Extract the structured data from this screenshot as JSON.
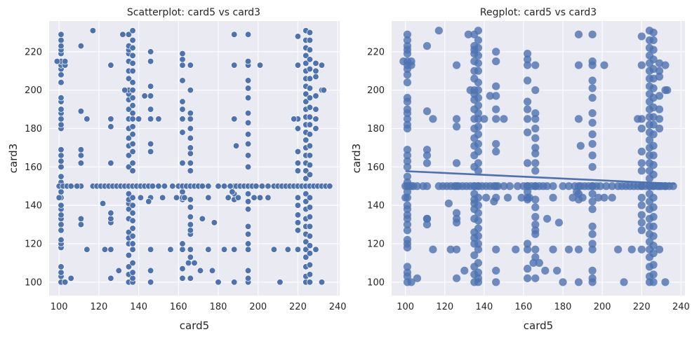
{
  "colors": {
    "plot_bg": "#eaeaf2",
    "grid": "#ffffff",
    "point": "#4c72b0",
    "edge": "#ffffff",
    "text": "#262626"
  },
  "chart_data": [
    {
      "type": "scatter",
      "title": "Scatterplot: card5 vs card3",
      "xlabel": "card5",
      "ylabel": "card3",
      "xlim": [
        95,
        241
      ],
      "ylim": [
        93,
        236
      ],
      "xticks": [
        100,
        120,
        140,
        160,
        180,
        200,
        220,
        240
      ],
      "yticks": [
        100,
        120,
        140,
        160,
        180,
        200,
        220
      ],
      "grid": true,
      "point_style": "white-edge",
      "columns": [
        {
          "x": 101,
          "y": [
            100,
            103,
            105,
            108,
            118,
            120,
            122,
            127,
            130,
            133,
            135,
            138,
            144,
            147,
            150,
            152,
            155,
            160,
            163,
            166,
            169,
            180,
            182,
            185,
            188,
            190,
            194,
            196,
            204,
            208,
            211,
            213,
            215,
            219,
            221,
            223,
            226,
            229
          ]
        },
        {
          "x": 103,
          "y": [
            100,
            150,
            213,
            215
          ]
        },
        {
          "x": 111,
          "y": [
            130,
            133,
            150,
            162,
            166,
            169,
            189,
            223
          ]
        },
        {
          "x": 126,
          "y": [
            102,
            117,
            131,
            133,
            136,
            150,
            162,
            181,
            185,
            213
          ]
        },
        {
          "x": 135,
          "y": [
            100,
            104,
            108,
            114,
            120,
            123,
            126,
            133,
            138,
            141,
            143,
            146,
            150,
            160,
            166,
            171,
            175,
            180,
            185,
            190,
            195,
            198,
            200,
            206,
            210,
            215,
            219,
            221,
            223,
            229
          ]
        },
        {
          "x": 137,
          "y": [
            100,
            102,
            105,
            110,
            117,
            120,
            124,
            128,
            132,
            136,
            140,
            144,
            150,
            158,
            162,
            168,
            172,
            177,
            181,
            185,
            188,
            192,
            196,
            200,
            204,
            210,
            214,
            218,
            222,
            226,
            231
          ]
        },
        {
          "x": 146,
          "y": [
            100,
            106,
            117,
            150,
            168,
            172,
            185,
            190,
            197,
            202,
            215,
            220
          ]
        },
        {
          "x": 162,
          "y": [
            102,
            107,
            117,
            120,
            143,
            147,
            150,
            162,
            178,
            185,
            190,
            194,
            205,
            213,
            216,
            219
          ]
        },
        {
          "x": 166,
          "y": [
            102,
            113,
            117,
            125,
            127,
            130,
            134,
            139,
            143,
            150,
            158,
            162,
            167,
            170,
            175,
            180,
            185,
            188,
            200,
            213
          ]
        },
        {
          "x": 188,
          "y": [
            100,
            117,
            143,
            146,
            150,
            185,
            213,
            229
          ]
        },
        {
          "x": 195,
          "y": [
            100,
            102,
            106,
            117,
            120,
            125,
            129,
            138,
            142,
            146,
            150,
            160,
            166,
            172,
            177,
            183,
            188,
            196,
            201,
            205,
            213,
            215,
            229
          ]
        },
        {
          "x": 220,
          "y": [
            117,
            127,
            131,
            135,
            140,
            144,
            150,
            158,
            162,
            168,
            180,
            185,
            213,
            228
          ]
        },
        {
          "x": 224,
          "y": [
            100,
            103,
            108,
            113,
            117,
            121,
            125,
            129,
            133,
            138,
            142,
            146,
            150,
            154,
            158,
            162,
            166,
            170,
            174,
            178,
            182,
            186,
            190,
            194,
            198,
            202,
            206,
            210,
            214,
            218,
            222,
            226,
            231
          ]
        },
        {
          "x": 226,
          "y": [
            100,
            104,
            109,
            115,
            119,
            124,
            129,
            134,
            139,
            144,
            150,
            156,
            161,
            166,
            171,
            177,
            182,
            186,
            191,
            196,
            201,
            206,
            211,
            216,
            221,
            226,
            230
          ]
        },
        {
          "x": 229,
          "y": [
            117,
            150,
            180,
            185,
            190,
            197,
            207,
            210,
            214
          ]
        },
        {
          "x": 232,
          "y": [
            100,
            150,
            200,
            213
          ]
        }
      ],
      "rows": [
        {
          "y": 150,
          "x": [
            100,
            102,
            104,
            106,
            109,
            117,
            119,
            121,
            123,
            125,
            127,
            129,
            131,
            133,
            135,
            137,
            139,
            141,
            143,
            145,
            147,
            150,
            153,
            157,
            160,
            162,
            164,
            166,
            168,
            170,
            172,
            175,
            180,
            183,
            186,
            189,
            191,
            193,
            195,
            197,
            199,
            202,
            205,
            208,
            210,
            212,
            214,
            216,
            218,
            220,
            222,
            224,
            226,
            228,
            230,
            232,
            234,
            236
          ]
        },
        {
          "y": 144,
          "x": [
            100,
            141,
            146,
            152,
            162,
            163,
            175,
            185,
            190,
            198,
            201
          ]
        }
      ],
      "points": [
        {
          "x": 99,
          "y": 215
        },
        {
          "x": 101,
          "y": 140
        },
        {
          "x": 106,
          "y": 102
        },
        {
          "x": 111,
          "y": 133
        },
        {
          "x": 114,
          "y": 185
        },
        {
          "x": 114,
          "y": 117
        },
        {
          "x": 117,
          "y": 231
        },
        {
          "x": 122,
          "y": 141
        },
        {
          "x": 123,
          "y": 117
        },
        {
          "x": 130,
          "y": 106
        },
        {
          "x": 132,
          "y": 229
        },
        {
          "x": 133,
          "y": 200
        },
        {
          "x": 140,
          "y": 185
        },
        {
          "x": 143,
          "y": 197
        },
        {
          "x": 145,
          "y": 142
        },
        {
          "x": 150,
          "y": 185
        },
        {
          "x": 156,
          "y": 117
        },
        {
          "x": 159,
          "y": 144
        },
        {
          "x": 165,
          "y": 110
        },
        {
          "x": 168,
          "y": 110
        },
        {
          "x": 171,
          "y": 106
        },
        {
          "x": 172,
          "y": 133
        },
        {
          "x": 175,
          "y": 117
        },
        {
          "x": 177,
          "y": 106
        },
        {
          "x": 178,
          "y": 131
        },
        {
          "x": 180,
          "y": 100
        },
        {
          "x": 183,
          "y": 117
        },
        {
          "x": 187,
          "y": 147
        },
        {
          "x": 189,
          "y": 171
        },
        {
          "x": 201,
          "y": 213
        },
        {
          "x": 205,
          "y": 144
        },
        {
          "x": 208,
          "y": 117
        },
        {
          "x": 211,
          "y": 100
        },
        {
          "x": 215,
          "y": 117
        },
        {
          "x": 218,
          "y": 185
        },
        {
          "x": 233,
          "y": 200
        }
      ]
    },
    {
      "type": "scatter",
      "title": "Regplot: card5 vs card3",
      "xlabel": "card5",
      "ylabel": "card3",
      "xlim": [
        93,
        242
      ],
      "ylim": [
        93,
        236
      ],
      "xticks": [
        100,
        120,
        140,
        160,
        180,
        200,
        220,
        240
      ],
      "yticks": [
        100,
        120,
        140,
        160,
        180,
        200,
        220
      ],
      "grid": true,
      "point_style": "translucent",
      "same_points_as": 0,
      "regression_line": {
        "x": [
          100,
          237
        ],
        "y": [
          157.8,
          151.2
        ]
      }
    }
  ]
}
